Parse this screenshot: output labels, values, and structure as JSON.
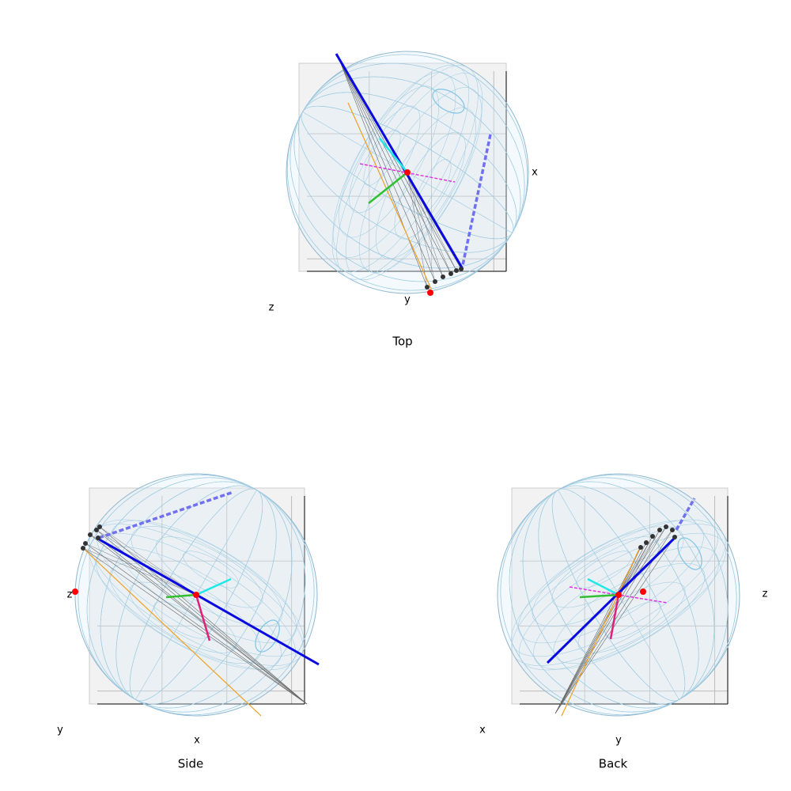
{
  "panels": [
    {
      "title": "Top",
      "axis_labels": {
        "x": "x",
        "y": "y",
        "z": "z"
      }
    },
    {
      "title": "Side",
      "axis_labels": {
        "x": "x",
        "y": "y",
        "z": "z"
      }
    },
    {
      "title": "Back",
      "axis_labels": {
        "x": "x",
        "y": "y",
        "z": "z"
      }
    }
  ]
}
